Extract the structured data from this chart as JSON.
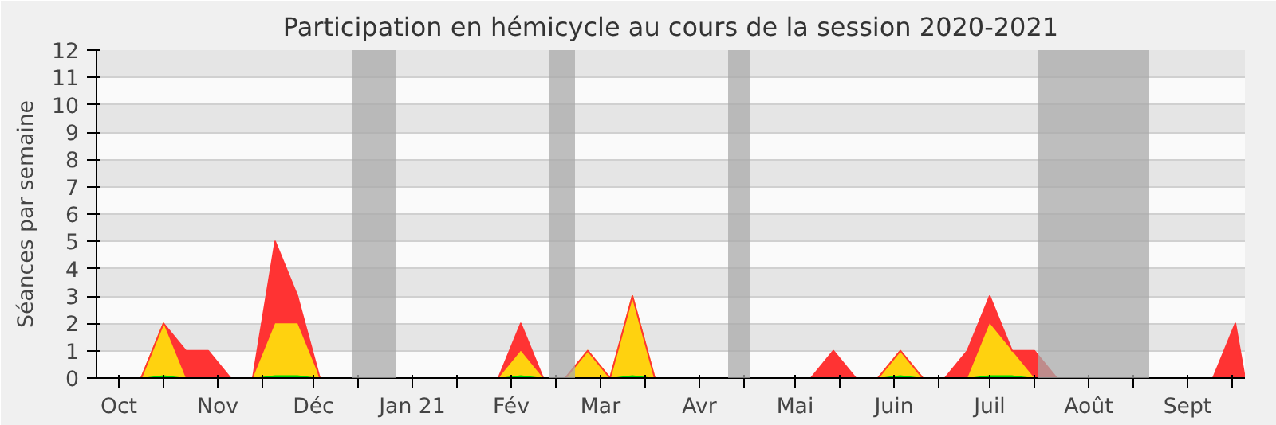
{
  "chart_data": {
    "type": "area",
    "stacked": true,
    "title": "Participation en hémicycle au cours de la session 2020-2021",
    "ylabel": "Séances par semaine",
    "x": [
      "2020-09-24",
      "2020-10-01",
      "2020-10-08",
      "2020-10-15",
      "2020-10-22",
      "2020-10-29",
      "2020-11-05",
      "2020-11-12",
      "2020-11-19",
      "2020-11-26",
      "2020-12-03",
      "2020-12-10",
      "2020-12-17",
      "2020-12-24",
      "2020-12-31",
      "2021-01-07",
      "2021-01-14",
      "2021-01-21",
      "2021-01-28",
      "2021-02-04",
      "2021-02-11",
      "2021-02-18",
      "2021-02-25",
      "2021-03-04",
      "2021-03-11",
      "2021-03-18",
      "2021-03-25",
      "2021-04-01",
      "2021-04-08",
      "2021-04-15",
      "2021-04-22",
      "2021-04-29",
      "2021-05-06",
      "2021-05-13",
      "2021-05-20",
      "2021-05-27",
      "2021-06-03",
      "2021-06-10",
      "2021-06-17",
      "2021-06-24",
      "2021-07-01",
      "2021-07-08",
      "2021-07-15",
      "2021-07-22",
      "2021-07-29",
      "2021-08-05",
      "2021-08-12",
      "2021-08-19",
      "2021-08-26",
      "2021-09-02",
      "2021-09-09",
      "2021-09-16",
      "2021-09-19"
    ],
    "series": [
      {
        "color": "#00dd00",
        "values": [
          0,
          0,
          0,
          0.1,
          0,
          0,
          0,
          0,
          0.1,
          0.1,
          0,
          0,
          0,
          0,
          0,
          0,
          0,
          0,
          0,
          0.1,
          0,
          0,
          0,
          0,
          0.1,
          0,
          0,
          0,
          0,
          0,
          0,
          0,
          0,
          0,
          0,
          0,
          0.1,
          0,
          0,
          0,
          0.1,
          0.1,
          0,
          0,
          0,
          0,
          0,
          0,
          0,
          0,
          0,
          0,
          0
        ]
      },
      {
        "color": "#ffd20f",
        "values": [
          0,
          0,
          0,
          1.9,
          0,
          0,
          0,
          0,
          1.9,
          1.9,
          0,
          0,
          0,
          0,
          0,
          0,
          0,
          0,
          0,
          0.9,
          0,
          0,
          1,
          0,
          2.9,
          0,
          0,
          0,
          0,
          0,
          0,
          0,
          0,
          0,
          0,
          0,
          0.9,
          0,
          0,
          0,
          1.9,
          0.9,
          0,
          0,
          0,
          0,
          0,
          0,
          0,
          0,
          0,
          0,
          0
        ]
      },
      {
        "color": "#ff3333",
        "values": [
          0,
          0,
          0,
          0,
          1,
          1,
          0,
          0,
          3,
          1,
          0,
          0,
          0,
          0,
          0,
          0,
          0,
          0,
          0,
          1,
          0,
          0,
          0,
          0,
          0,
          0,
          0,
          0,
          0,
          0,
          0,
          0,
          0,
          1,
          0,
          0,
          0,
          0,
          0,
          1,
          1,
          0,
          1,
          0,
          0,
          0,
          0,
          0,
          0,
          0,
          0,
          2,
          0
        ]
      }
    ],
    "xlim": [
      "2020-09-24",
      "2021-09-19"
    ],
    "xticks": [
      {
        "value": "2020-10-01",
        "label": "Oct"
      },
      {
        "value": "2020-11-01",
        "label": "Nov"
      },
      {
        "value": "2020-12-01",
        "label": "Déc"
      },
      {
        "value": "2021-01-01",
        "label": "Jan 21"
      },
      {
        "value": "2021-02-01",
        "label": "Fév"
      },
      {
        "value": "2021-03-01",
        "label": "Mar"
      },
      {
        "value": "2021-04-01",
        "label": "Avr"
      },
      {
        "value": "2021-05-01",
        "label": "Mai"
      },
      {
        "value": "2021-06-01",
        "label": "Juin"
      },
      {
        "value": "2021-07-01",
        "label": "Juil"
      },
      {
        "value": "2021-08-01",
        "label": "Août"
      },
      {
        "value": "2021-09-01",
        "label": "Sept"
      },
      {
        "value": "2020-10-15",
        "label": null
      },
      {
        "value": "2020-11-15",
        "label": null
      },
      {
        "value": "2020-12-15",
        "label": null
      },
      {
        "value": "2021-01-15",
        "label": null
      },
      {
        "value": "2021-02-15",
        "label": null
      },
      {
        "value": "2021-03-15",
        "label": null
      },
      {
        "value": "2021-04-15",
        "label": null
      },
      {
        "value": "2021-05-15",
        "label": null
      },
      {
        "value": "2021-06-15",
        "label": null
      },
      {
        "value": "2021-07-15",
        "label": null
      },
      {
        "value": "2021-08-15",
        "label": null
      },
      {
        "value": "2021-09-15",
        "label": null
      }
    ],
    "ylim": [
      0,
      12
    ],
    "yticks": [
      0,
      1,
      2,
      3,
      4,
      5,
      6,
      7,
      8,
      9,
      10,
      11,
      12
    ],
    "grid": "y",
    "bands": [
      {
        "axis": "x",
        "from": "2020-12-13",
        "to": "2020-12-27",
        "color": "#aaaaaa"
      },
      {
        "axis": "x",
        "from": "2021-02-13",
        "to": "2021-02-21",
        "color": "#aaaaaa"
      },
      {
        "axis": "x",
        "from": "2021-04-10",
        "to": "2021-04-17",
        "color": "#aaaaaa"
      },
      {
        "axis": "x",
        "from": "2021-07-16",
        "to": "2021-08-20",
        "color": "#aaaaaa"
      }
    ]
  }
}
